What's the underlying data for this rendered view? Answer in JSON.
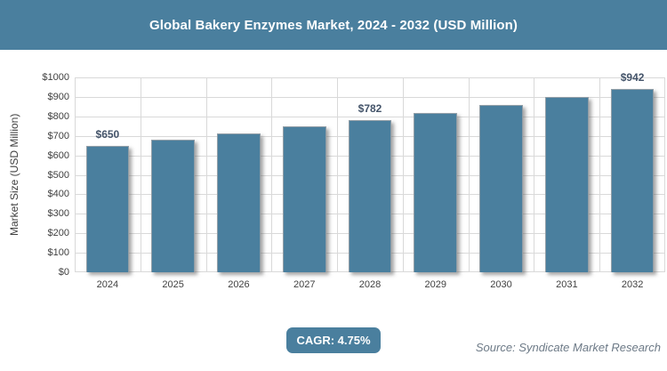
{
  "header": {
    "title": "Global Bakery Enzymes Market, 2024 - 2032 (USD Million)"
  },
  "footer": {
    "cagr_badge": "CAGR: 4.75%",
    "source": "Source: Syndicate Market Research"
  },
  "colors": {
    "accent": "#4A7F9E",
    "grid": "#D9D9D9",
    "axis_text": "#404040",
    "data_label": "#44546A",
    "source_text": "#6D7A87"
  },
  "chart_data": {
    "type": "bar",
    "title": "Global Bakery Enzymes Market, 2024 - 2032 (USD Million)",
    "categories": [
      "2024",
      "2025",
      "2026",
      "2027",
      "2028",
      "2029",
      "2030",
      "2031",
      "2032"
    ],
    "values": [
      650,
      681,
      713,
      747,
      782,
      819,
      858,
      899,
      942
    ],
    "data_labels": [
      "$650",
      "",
      "",
      "",
      "$782",
      "",
      "",
      "",
      "$942"
    ],
    "xlabel": "",
    "ylabel": "Market Size (USD Million)",
    "ylim": [
      0,
      1000
    ],
    "ytick_step": 100,
    "ytick_prefix": "$",
    "grid": "horizontal and vertical, light gray",
    "legend": false,
    "bar_color": "#4A7F9E",
    "cagr": "4.75%"
  }
}
